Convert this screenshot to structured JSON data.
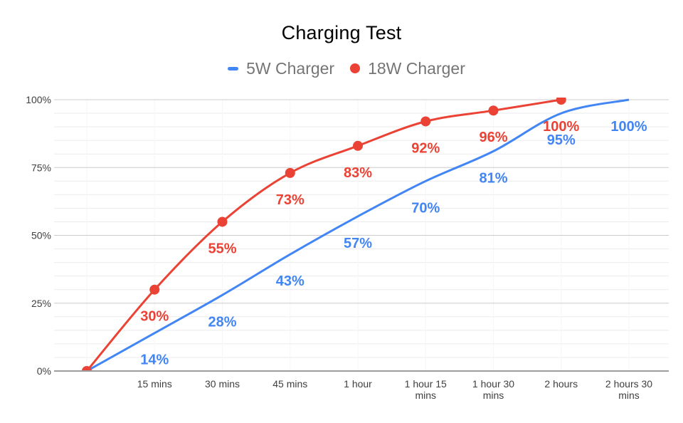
{
  "chart_data": {
    "type": "line",
    "title": "Charging Test",
    "categories": [
      "",
      "15 mins",
      "30 mins",
      "45 mins",
      "1 hour",
      [
        "1 hour 15",
        "mins"
      ],
      [
        "1 hour 30",
        "mins"
      ],
      "2 hours",
      [
        "2 hours 30",
        "mins"
      ]
    ],
    "series": [
      {
        "name": "5W Charger",
        "color": "#4285F4",
        "points": false,
        "values": [
          0,
          14,
          28,
          43,
          57,
          70,
          81,
          95,
          100
        ],
        "labels": [
          "",
          "14%",
          "28%",
          "43%",
          "57%",
          "70%",
          "81%",
          "95%",
          "100%"
        ]
      },
      {
        "name": "18W Charger",
        "color": "#EA4335",
        "points": true,
        "values": [
          0,
          30,
          55,
          73,
          83,
          92,
          96,
          100
        ],
        "labels": [
          "",
          "30%",
          "55%",
          "73%",
          "83%",
          "92%",
          "96%",
          "100%"
        ]
      }
    ],
    "y_axis": {
      "ticks": [
        "0%",
        "25%",
        "50%",
        "75%",
        "100%"
      ],
      "min": 0,
      "max": 100,
      "major_step": 25,
      "minor_step": 5
    },
    "x_axis_title": "",
    "legend_position": "top",
    "grid": true,
    "smooth": true
  }
}
